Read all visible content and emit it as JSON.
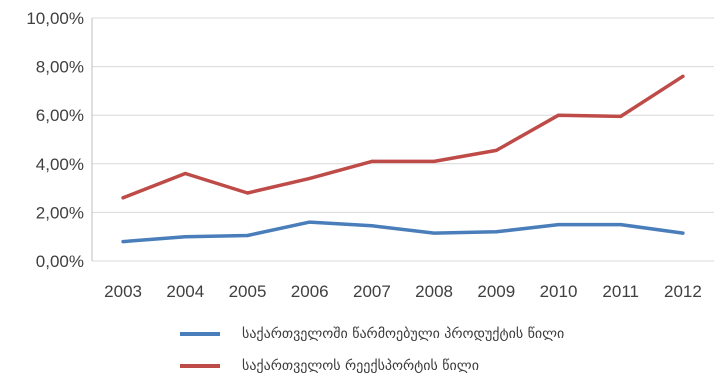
{
  "chart_data": {
    "type": "line",
    "categories": [
      "2003",
      "2004",
      "2005",
      "2006",
      "2007",
      "2008",
      "2009",
      "2010",
      "2011",
      "2012"
    ],
    "y_ticks": [
      "0,00%",
      "2,00%",
      "4,00%",
      "6,00%",
      "8,00%",
      "10,00%"
    ],
    "ylim": [
      0,
      10
    ],
    "grid": true,
    "legend_position": "bottom",
    "series": [
      {
        "name": "საქართველოში წარმოებული პროდუქტის წილი",
        "color": "#4a7ebb",
        "values": [
          0.8,
          1.0,
          1.05,
          1.6,
          1.45,
          1.15,
          1.2,
          1.5,
          1.5,
          1.15
        ]
      },
      {
        "name": "საქართველოს რეექსპორტის წილი",
        "color": "#be4b48",
        "values": [
          2.6,
          3.6,
          2.8,
          3.4,
          4.1,
          4.1,
          4.55,
          6.0,
          5.95,
          7.6
        ]
      }
    ]
  }
}
